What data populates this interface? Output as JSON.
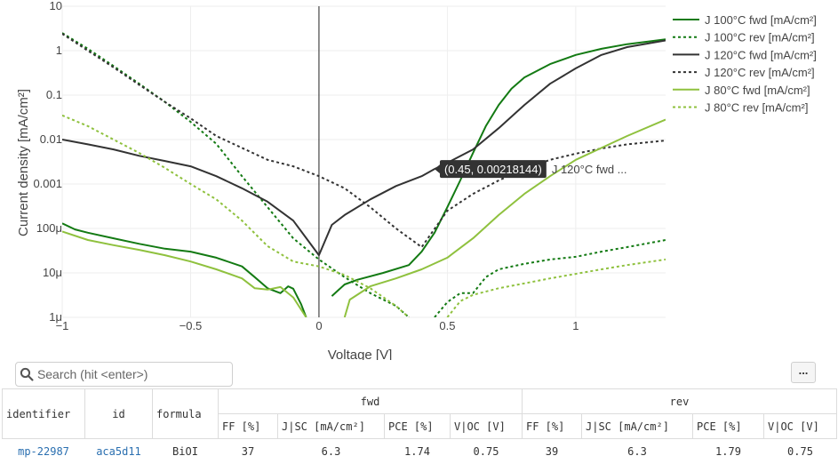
{
  "chart_data": {
    "type": "line",
    "xlabel": "Voltage [V]",
    "ylabel": "Current density [mA/cm²]",
    "xlim": [
      -1,
      1.35
    ],
    "ylim_log10": [
      -6,
      1
    ],
    "x_ticks": [
      -1,
      -0.5,
      0,
      0.5,
      1
    ],
    "x_tick_labels": [
      "−1",
      "−0.5",
      "0",
      "0.5",
      "1"
    ],
    "y_ticks": [
      1e-06,
      1e-05,
      0.0001,
      0.001,
      0.01,
      0.1,
      1,
      10
    ],
    "y_tick_labels": [
      "1μ",
      "10μ",
      "100μ",
      "0.001",
      "0.01",
      "0.1",
      "1",
      "10"
    ],
    "y_scale": "log",
    "grid": true,
    "legend_position": "top-right",
    "series": [
      {
        "name": "J 100°C fwd [mA/cm²]",
        "color": "#137a13",
        "dash": "solid",
        "segments": [
          [
            [
              -1,
              0.00013
            ],
            [
              -0.95,
              9.5e-05
            ],
            [
              -0.9,
              8e-05
            ],
            [
              -0.8,
              6e-05
            ],
            [
              -0.7,
              4.5e-05
            ],
            [
              -0.6,
              3.5e-05
            ],
            [
              -0.5,
              3e-05
            ],
            [
              -0.4,
              2.2e-05
            ],
            [
              -0.3,
              1.4e-05
            ],
            [
              -0.25,
              8e-06
            ],
            [
              -0.2,
              4.5e-06
            ],
            [
              -0.15,
              3.5e-06
            ],
            [
              -0.12,
              5e-06
            ],
            [
              -0.1,
              4.4e-06
            ],
            [
              -0.07,
              2e-06
            ],
            [
              -0.05,
              1e-06
            ]
          ],
          [
            [
              0.05,
              3e-06
            ],
            [
              0.1,
              5.5e-06
            ],
            [
              0.15,
              7e-06
            ],
            [
              0.25,
              1e-05
            ],
            [
              0.35,
              1.5e-05
            ],
            [
              0.4,
              3e-05
            ],
            [
              0.45,
              8e-05
            ],
            [
              0.5,
              0.0003
            ],
            [
              0.55,
              0.0012
            ],
            [
              0.6,
              0.005
            ],
            [
              0.65,
              0.02
            ],
            [
              0.7,
              0.06
            ],
            [
              0.75,
              0.14
            ],
            [
              0.8,
              0.25
            ],
            [
              0.9,
              0.5
            ],
            [
              1.0,
              0.8
            ],
            [
              1.1,
              1.1
            ],
            [
              1.2,
              1.4
            ],
            [
              1.35,
              1.8
            ]
          ]
        ]
      },
      {
        "name": "J 100°C rev [mA/cm²]",
        "color": "#137a13",
        "dash": "dot",
        "segments": [
          [
            [
              -1,
              2.5
            ],
            [
              -0.9,
              1.1
            ],
            [
              -0.8,
              0.45
            ],
            [
              -0.7,
              0.18
            ],
            [
              -0.6,
              0.07
            ],
            [
              -0.5,
              0.025
            ],
            [
              -0.4,
              0.008
            ],
            [
              -0.3,
              0.0015
            ],
            [
              -0.2,
              0.0003
            ],
            [
              -0.1,
              6e-05
            ],
            [
              0,
              2e-05
            ],
            [
              0.1,
              8e-06
            ],
            [
              0.2,
              3.5e-06
            ],
            [
              0.3,
              1.8e-06
            ],
            [
              0.35,
              1e-06
            ]
          ],
          [
            [
              0.45,
              1e-06
            ],
            [
              0.5,
              2.2e-06
            ],
            [
              0.55,
              3.5e-06
            ],
            [
              0.6,
              3.5e-06
            ],
            [
              0.65,
              8e-06
            ],
            [
              0.7,
              1.2e-05
            ],
            [
              0.8,
              1.6e-05
            ],
            [
              0.9,
              2e-05
            ],
            [
              1.0,
              2.3e-05
            ],
            [
              1.1,
              3e-05
            ],
            [
              1.2,
              3.8e-05
            ],
            [
              1.35,
              5.5e-05
            ]
          ]
        ]
      },
      {
        "name": "J 120°C fwd [mA/cm²]",
        "color": "#333333",
        "dash": "solid",
        "segments": [
          [
            [
              -1,
              0.01
            ],
            [
              -0.9,
              0.0078
            ],
            [
              -0.8,
              0.006
            ],
            [
              -0.7,
              0.0043
            ],
            [
              -0.6,
              0.0033
            ],
            [
              -0.5,
              0.0025
            ],
            [
              -0.4,
              0.0015
            ],
            [
              -0.3,
              0.0008
            ],
            [
              -0.2,
              0.0004
            ],
            [
              -0.1,
              0.00015
            ],
            [
              0,
              2.5e-05
            ],
            [
              0.05,
              0.00012
            ],
            [
              0.1,
              0.0002
            ],
            [
              0.2,
              0.00045
            ],
            [
              0.3,
              0.0009
            ],
            [
              0.4,
              0.0015
            ],
            [
              0.45,
              0.00218144
            ],
            [
              0.5,
              0.003
            ],
            [
              0.6,
              0.006
            ],
            [
              0.7,
              0.018
            ],
            [
              0.8,
              0.06
            ],
            [
              0.9,
              0.18
            ],
            [
              1.0,
              0.4
            ],
            [
              1.1,
              0.8
            ],
            [
              1.2,
              1.2
            ],
            [
              1.35,
              1.7
            ]
          ]
        ]
      },
      {
        "name": "J 120°C rev [mA/cm²]",
        "color": "#333333",
        "dash": "dot",
        "segments": [
          [
            [
              -1,
              2.4
            ],
            [
              -0.9,
              1.0
            ],
            [
              -0.8,
              0.42
            ],
            [
              -0.7,
              0.17
            ],
            [
              -0.6,
              0.07
            ],
            [
              -0.5,
              0.03
            ],
            [
              -0.4,
              0.012
            ],
            [
              -0.3,
              0.0065
            ],
            [
              -0.2,
              0.0035
            ],
            [
              -0.1,
              0.0025
            ],
            [
              0,
              0.0015
            ],
            [
              0.1,
              0.0008
            ],
            [
              0.2,
              0.0003
            ],
            [
              0.3,
              0.0001
            ],
            [
              0.4,
              3.8e-05
            ],
            [
              0.5,
              0.00025
            ],
            [
              0.6,
              0.0006
            ],
            [
              0.7,
              0.0012
            ],
            [
              0.8,
              0.0022
            ],
            [
              0.9,
              0.0035
            ],
            [
              1.0,
              0.0048
            ],
            [
              1.1,
              0.0063
            ],
            [
              1.2,
              0.0078
            ],
            [
              1.35,
              0.0095
            ]
          ]
        ]
      },
      {
        "name": "J 80°C fwd [mA/cm²]",
        "color": "#8fc13e",
        "dash": "solid",
        "segments": [
          [
            [
              -1,
              8.5e-05
            ],
            [
              -0.9,
              5.5e-05
            ],
            [
              -0.8,
              4.2e-05
            ],
            [
              -0.7,
              3.3e-05
            ],
            [
              -0.6,
              2.5e-05
            ],
            [
              -0.5,
              1.8e-05
            ],
            [
              -0.4,
              1.2e-05
            ],
            [
              -0.3,
              7.5e-06
            ],
            [
              -0.25,
              4.5e-06
            ],
            [
              -0.2,
              4.2e-06
            ],
            [
              -0.15,
              4.8e-06
            ],
            [
              -0.1,
              2.8e-06
            ],
            [
              -0.05,
              1e-06
            ]
          ],
          [
            [
              0.1,
              1e-06
            ],
            [
              0.12,
              2.5e-06
            ],
            [
              0.2,
              5e-06
            ],
            [
              0.3,
              7.5e-06
            ],
            [
              0.4,
              1.2e-05
            ],
            [
              0.5,
              2.2e-05
            ],
            [
              0.6,
              6e-05
            ],
            [
              0.7,
              0.0002
            ],
            [
              0.8,
              0.0006
            ],
            [
              0.9,
              0.0015
            ],
            [
              1.0,
              0.0035
            ],
            [
              1.1,
              0.0065
            ],
            [
              1.2,
              0.012
            ],
            [
              1.35,
              0.028
            ]
          ]
        ]
      },
      {
        "name": "J 80°C rev [mA/cm²]",
        "color": "#8fc13e",
        "dash": "dot",
        "segments": [
          [
            [
              -1,
              0.035
            ],
            [
              -0.9,
              0.02
            ],
            [
              -0.8,
              0.01
            ],
            [
              -0.7,
              0.005
            ],
            [
              -0.6,
              0.0023
            ],
            [
              -0.5,
              0.001
            ],
            [
              -0.4,
              0.00045
            ],
            [
              -0.3,
              0.00015
            ],
            [
              -0.2,
              4e-05
            ],
            [
              -0.1,
              1.8e-05
            ],
            [
              0,
              1.4e-05
            ],
            [
              0.1,
              9e-06
            ],
            [
              0.2,
              4.5e-06
            ],
            [
              0.3,
              1.8e-06
            ],
            [
              0.35,
              1e-06
            ]
          ],
          [
            [
              0.5,
              1e-06
            ],
            [
              0.55,
              2.3e-06
            ],
            [
              0.6,
              3.2e-06
            ],
            [
              0.7,
              4.5e-06
            ],
            [
              0.8,
              5.8e-06
            ],
            [
              0.9,
              7.5e-06
            ],
            [
              1.0,
              9.5e-06
            ],
            [
              1.1,
              1.2e-05
            ],
            [
              1.2,
              1.5e-05
            ],
            [
              1.35,
              2e-05
            ]
          ]
        ]
      }
    ],
    "tooltip": {
      "text": "(0.45, 0.00218144)",
      "series_label": "J 120°C fwd ...",
      "x": 0.45,
      "y": 0.00218144,
      "color": "#333333"
    }
  },
  "search": {
    "placeholder": "Search (hit <enter>)"
  },
  "toolbar": {
    "more_label": "..."
  },
  "table": {
    "group_headers": {
      "fwd": "fwd",
      "rev": "rev"
    },
    "columns": {
      "identifier": "identifier",
      "id": "id",
      "formula": "formula"
    },
    "fwd_columns": [
      "FF [%]",
      "J|SC [mA/cm²]",
      "PCE [%]",
      "V|OC [V]"
    ],
    "rev_columns": [
      "FF [%]",
      "J|SC [mA/cm²]",
      "PCE [%]",
      "V|OC [V]"
    ],
    "rows": [
      {
        "identifier": "mp-22987",
        "id": "aca5d11",
        "formula": "BiOI",
        "fwd": [
          "37",
          "6.3",
          "1.74",
          "0.75"
        ],
        "rev": [
          "39",
          "6.3",
          "1.79",
          "0.75"
        ]
      }
    ]
  }
}
